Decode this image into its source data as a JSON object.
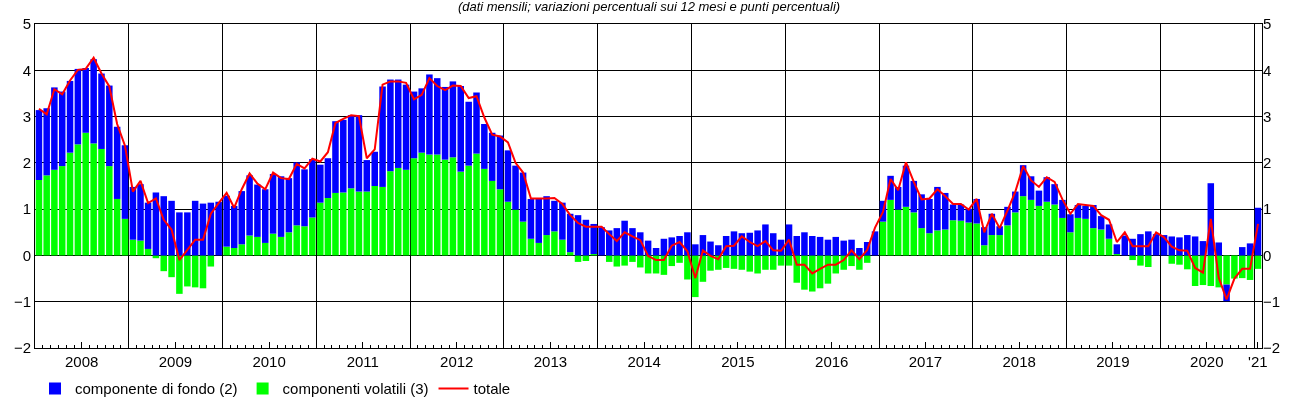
{
  "chart_data": {
    "type": "bar",
    "stacked": true,
    "title": "(dati mensili; variazioni percentuali sui 12 mesi e punti percentuali)",
    "x": [
      "2008-01",
      "2008-02",
      "2008-03",
      "2008-04",
      "2008-05",
      "2008-06",
      "2008-07",
      "2008-08",
      "2008-09",
      "2008-10",
      "2008-11",
      "2008-12",
      "2009-01",
      "2009-02",
      "2009-03",
      "2009-04",
      "2009-05",
      "2009-06",
      "2009-07",
      "2009-08",
      "2009-09",
      "2009-10",
      "2009-11",
      "2009-12",
      "2010-01",
      "2010-02",
      "2010-03",
      "2010-04",
      "2010-05",
      "2010-06",
      "2010-07",
      "2010-08",
      "2010-09",
      "2010-10",
      "2010-11",
      "2010-12",
      "2011-01",
      "2011-02",
      "2011-03",
      "2011-04",
      "2011-05",
      "2011-06",
      "2011-07",
      "2011-08",
      "2011-09",
      "2011-10",
      "2011-11",
      "2011-12",
      "2012-01",
      "2012-02",
      "2012-03",
      "2012-04",
      "2012-05",
      "2012-06",
      "2012-07",
      "2012-08",
      "2012-09",
      "2012-10",
      "2012-11",
      "2012-12",
      "2013-01",
      "2013-02",
      "2013-03",
      "2013-04",
      "2013-05",
      "2013-06",
      "2013-07",
      "2013-08",
      "2013-09",
      "2013-10",
      "2013-11",
      "2013-12",
      "2014-01",
      "2014-02",
      "2014-03",
      "2014-04",
      "2014-05",
      "2014-06",
      "2014-07",
      "2014-08",
      "2014-09",
      "2014-10",
      "2014-11",
      "2014-12",
      "2015-01",
      "2015-02",
      "2015-03",
      "2015-04",
      "2015-05",
      "2015-06",
      "2015-07",
      "2015-08",
      "2015-09",
      "2015-10",
      "2015-11",
      "2015-12",
      "2016-01",
      "2016-02",
      "2016-03",
      "2016-04",
      "2016-05",
      "2016-06",
      "2016-07",
      "2016-08",
      "2016-09",
      "2016-10",
      "2016-11",
      "2016-12",
      "2017-01",
      "2017-02",
      "2017-03",
      "2017-04",
      "2017-05",
      "2017-06",
      "2017-07",
      "2017-08",
      "2017-09",
      "2017-10",
      "2017-11",
      "2017-12",
      "2018-01",
      "2018-02",
      "2018-03",
      "2018-04",
      "2018-05",
      "2018-06",
      "2018-07",
      "2018-08",
      "2018-09",
      "2018-10",
      "2018-11",
      "2018-12",
      "2019-01",
      "2019-02",
      "2019-03",
      "2019-04",
      "2019-05",
      "2019-06",
      "2019-07",
      "2019-08",
      "2019-09",
      "2019-10",
      "2019-11",
      "2019-12",
      "2020-01",
      "2020-02",
      "2020-03",
      "2020-04",
      "2020-05",
      "2020-06",
      "2020-07",
      "2020-08",
      "2020-09",
      "2020-10",
      "2020-11",
      "2020-12",
      "2021-01"
    ],
    "series": [
      {
        "name": "componenti volatili (3)",
        "color": "#00ff00",
        "values": [
          1.63,
          1.73,
          1.85,
          1.93,
          2.22,
          2.4,
          2.65,
          2.42,
          2.3,
          1.93,
          1.22,
          0.79,
          0.34,
          0.32,
          0.14,
          -0.06,
          -0.34,
          -0.47,
          -0.83,
          -0.67,
          -0.69,
          -0.71,
          -0.24,
          null,
          0.19,
          0.16,
          0.24,
          0.43,
          0.4,
          0.27,
          0.47,
          0.4,
          0.5,
          0.65,
          0.63,
          0.82,
          1.14,
          1.24,
          1.35,
          1.36,
          1.45,
          1.38,
          1.38,
          1.5,
          1.48,
          1.82,
          1.89,
          1.85,
          2.1,
          2.22,
          2.18,
          2.18,
          2.07,
          2.12,
          1.81,
          1.94,
          2.2,
          1.87,
          1.61,
          1.43,
          1.16,
          0.99,
          0.73,
          0.36,
          0.27,
          0.44,
          0.52,
          0.34,
          0.07,
          -0.14,
          -0.12,
          0.03,
          null,
          -0.14,
          -0.24,
          -0.22,
          -0.14,
          -0.26,
          -0.39,
          -0.39,
          -0.42,
          -0.23,
          -0.16,
          -0.52,
          -0.9,
          -0.57,
          -0.33,
          -0.31,
          -0.27,
          -0.29,
          -0.31,
          -0.35,
          -0.39,
          -0.31,
          -0.31,
          -0.22,
          -0.22,
          -0.59,
          -0.74,
          -0.78,
          -0.71,
          -0.61,
          -0.39,
          -0.31,
          -0.23,
          -0.31,
          -0.16,
          0.0,
          0.73,
          1.2,
          0.99,
          1.05,
          0.93,
          0.59,
          0.48,
          0.54,
          0.56,
          0.76,
          0.75,
          0.71,
          0.69,
          0.22,
          0.44,
          0.44,
          0.65,
          0.93,
          1.28,
          1.2,
          1.07,
          1.16,
          1.1,
          0.81,
          0.5,
          0.81,
          0.79,
          0.59,
          0.56,
          0.36,
          0.03,
          null,
          -0.1,
          -0.22,
          -0.25,
          0.0,
          0.0,
          -0.18,
          -0.2,
          -0.3,
          -0.66,
          -0.64,
          -0.66,
          -0.69,
          -0.63,
          -0.5,
          -0.49,
          -0.53,
          -0.29
        ]
      },
      {
        "name": "componente di fondo (2)",
        "color": "#0000ff",
        "values": [
          1.51,
          1.45,
          1.78,
          1.61,
          1.55,
          1.63,
          1.4,
          1.82,
          1.63,
          1.74,
          1.56,
          1.59,
          1.14,
          1.22,
          1.0,
          1.36,
          1.28,
          1.18,
          0.93,
          0.93,
          1.18,
          1.12,
          1.14,
          1.16,
          1.1,
          0.91,
          1.15,
          1.3,
          1.13,
          1.16,
          1.29,
          1.31,
          1.17,
          1.36,
          1.23,
          1.26,
          0.82,
          0.86,
          1.55,
          1.57,
          1.58,
          1.65,
          0.68,
          0.74,
          2.17,
          1.98,
          1.91,
          1.84,
          1.44,
          1.39,
          1.73,
          1.65,
          1.57,
          1.64,
          1.85,
          1.38,
          1.32,
          0.97,
          1.04,
          1.16,
          1.11,
          0.95,
          1.06,
          0.86,
          0.95,
          0.84,
          0.66,
          0.8,
          0.83,
          0.87,
          0.77,
          0.65,
          0.61,
          0.54,
          0.59,
          0.75,
          0.59,
          0.5,
          0.32,
          0.16,
          0.36,
          0.39,
          0.42,
          0.5,
          0.24,
          0.44,
          0.3,
          0.22,
          0.42,
          0.52,
          0.48,
          0.49,
          0.54,
          0.67,
          0.48,
          0.34,
          0.67,
          0.42,
          0.5,
          0.42,
          0.4,
          0.34,
          0.4,
          0.32,
          0.34,
          0.16,
          0.29,
          0.52,
          0.45,
          0.52,
          0.49,
          0.89,
          0.68,
          0.73,
          0.74,
          0.94,
          0.79,
          0.34,
          0.35,
          0.3,
          0.53,
          0.39,
          0.46,
          0.19,
          0.4,
          0.45,
          0.67,
          0.51,
          0.33,
          0.53,
          0.44,
          0.39,
          0.39,
          0.28,
          0.28,
          0.5,
          0.29,
          0.31,
          0.21,
          0.43,
          0.36,
          0.46,
          0.52,
          0.46,
          0.44,
          0.41,
          0.39,
          0.44,
          0.41,
          0.31,
          1.56,
          0.28,
          -0.36,
          0.0,
          0.18,
          0.26,
          1.03
        ]
      },
      {
        "name": "totale",
        "type": "line",
        "color": "#ff0000",
        "values": [
          3.17,
          3.05,
          3.59,
          3.48,
          3.78,
          4.01,
          4.03,
          4.27,
          3.93,
          3.65,
          2.84,
          2.37,
          1.38,
          1.61,
          1.13,
          1.23,
          0.77,
          0.56,
          -0.1,
          0.12,
          0.34,
          0.34,
          0.9,
          1.13,
          1.35,
          1.03,
          1.43,
          1.77,
          1.55,
          1.43,
          1.79,
          1.67,
          1.65,
          1.98,
          1.88,
          2.09,
          2.03,
          2.23,
          2.86,
          2.95,
          3.03,
          3.01,
          2.1,
          2.29,
          3.69,
          3.76,
          3.76,
          3.73,
          3.37,
          3.47,
          3.83,
          3.66,
          3.57,
          3.67,
          3.66,
          3.4,
          3.44,
          2.98,
          2.61,
          2.57,
          2.44,
          2.0,
          1.79,
          1.23,
          1.23,
          1.23,
          1.24,
          1.11,
          0.87,
          0.7,
          0.62,
          0.62,
          0.62,
          0.46,
          0.31,
          0.5,
          0.41,
          0.33,
          -0.01,
          -0.1,
          -0.1,
          0.21,
          0.29,
          0.09,
          -0.49,
          0.11,
          -0.01,
          -0.08,
          0.2,
          0.21,
          0.41,
          0.29,
          0.2,
          0.31,
          0.11,
          0.1,
          0.34,
          -0.2,
          -0.2,
          -0.39,
          -0.29,
          -0.2,
          -0.2,
          -0.1,
          0.11,
          -0.08,
          0.12,
          0.6,
          0.94,
          1.65,
          1.41,
          2.01,
          1.59,
          1.21,
          1.23,
          1.43,
          1.28,
          1.11,
          1.11,
          0.99,
          1.22,
          0.5,
          0.9,
          0.59,
          0.97,
          1.38,
          1.93,
          1.62,
          1.48,
          1.69,
          1.59,
          1.21,
          0.9,
          1.11,
          1.09,
          1.07,
          0.87,
          0.77,
          0.29,
          0.5,
          0.2,
          0.2,
          0.2,
          0.5,
          0.39,
          0.19,
          0.11,
          0.1,
          -0.27,
          -0.37,
          0.79,
          -0.48,
          -0.95,
          -0.5,
          -0.29,
          -0.29,
          0.68
        ]
      }
    ],
    "xlim": [
      "2008-01-01",
      "2021-02-01"
    ],
    "xticks": [
      {
        "value": "2008-07-01",
        "label": "2008"
      },
      {
        "value": "2009-07-01",
        "label": "2009"
      },
      {
        "value": "2010-07-01",
        "label": "2010"
      },
      {
        "value": "2011-07-01",
        "label": "2011"
      },
      {
        "value": "2012-07-01",
        "label": "2012"
      },
      {
        "value": "2013-07-01",
        "label": "2013"
      },
      {
        "value": "2014-07-01",
        "label": "2014"
      },
      {
        "value": "2015-07-01",
        "label": "2015"
      },
      {
        "value": "2016-07-01",
        "label": "2016"
      },
      {
        "value": "2017-07-01",
        "label": "2017"
      },
      {
        "value": "2018-07-01",
        "label": "2018"
      },
      {
        "value": "2019-07-01",
        "label": "2019"
      },
      {
        "value": "2020-07-01",
        "label": "2020"
      },
      {
        "value": "2021-01-16",
        "label": "'21"
      },
      {
        "value": "2009-01-01",
        "label": null
      },
      {
        "value": "2010-01-01",
        "label": null
      },
      {
        "value": "2011-01-01",
        "label": null
      },
      {
        "value": "2012-01-01",
        "label": null
      },
      {
        "value": "2013-01-01",
        "label": null
      },
      {
        "value": "2014-01-01",
        "label": null
      },
      {
        "value": "2015-01-01",
        "label": null
      },
      {
        "value": "2016-01-01",
        "label": null
      },
      {
        "value": "2017-01-01",
        "label": null
      },
      {
        "value": "2018-01-01",
        "label": null
      },
      {
        "value": "2019-01-01",
        "label": null
      },
      {
        "value": "2020-01-01",
        "label": null
      },
      {
        "value": "2021-01-01",
        "label": null
      }
    ],
    "ylim": [
      -2,
      5
    ],
    "yticks": [
      {
        "value": -2,
        "label": "−2"
      },
      {
        "value": -1,
        "label": "−1"
      },
      0,
      1,
      2,
      3,
      4,
      5
    ],
    "y2lim": [
      -2,
      5
    ],
    "y2ticks": [
      {
        "value": -2,
        "label": "−2"
      },
      {
        "value": -1,
        "label": "−1"
      },
      0,
      1,
      2,
      3,
      4,
      5
    ],
    "grid": true,
    "legend": "bottom left"
  }
}
